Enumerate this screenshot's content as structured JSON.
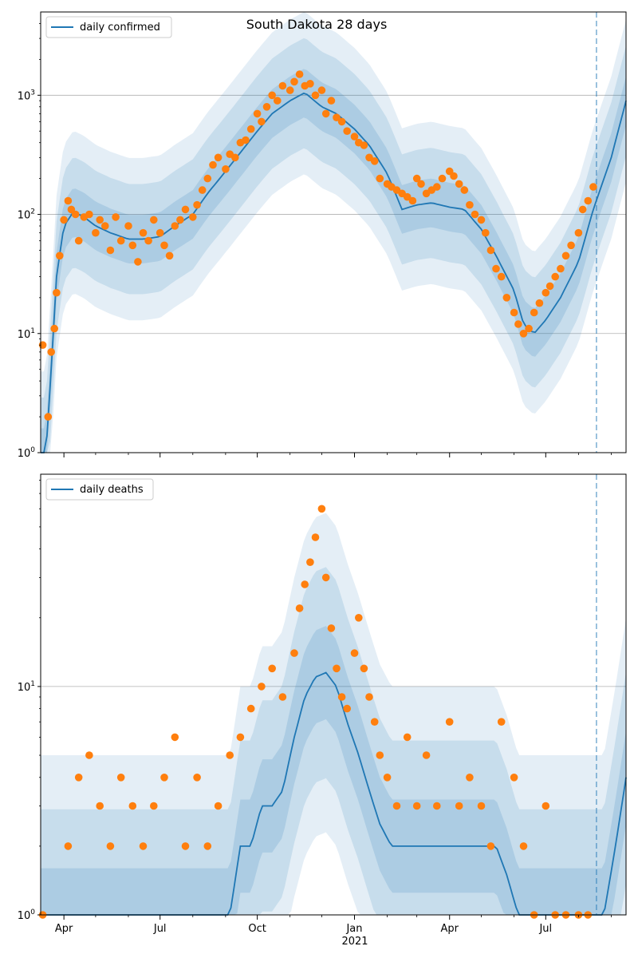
{
  "figure": {
    "title": "South Dakota 28 days",
    "year_label": "2021"
  },
  "colors": {
    "line": "#1f77b4",
    "points": "#ff7f0e",
    "band": "#1f77b4",
    "grid": "#b0b0b0"
  },
  "chart_data": [
    {
      "type": "line",
      "name": "cases",
      "title": "South Dakota 28 days",
      "yscale": "log",
      "ylim": [
        1,
        5000
      ],
      "xlim": [
        "2020-03-10",
        "2021-09-15"
      ],
      "grid": true,
      "legend": {
        "position": "top-left",
        "entries": [
          "daily confirmed"
        ]
      },
      "forecast_start": "2021-08-18",
      "yticks": [
        {
          "value": 1,
          "label": "10^0"
        },
        {
          "value": 10,
          "label": "10^1"
        },
        {
          "value": 100,
          "label": "10^2"
        },
        {
          "value": 1000,
          "label": "10^3"
        }
      ],
      "xticks": [
        "Apr",
        "Jul",
        "Oct",
        "Jan",
        "Apr",
        "Jul"
      ],
      "series": [
        {
          "name": "daily confirmed",
          "kind": "model-median",
          "x": [
            "2020-03-15",
            "2020-03-20",
            "2020-03-25",
            "2020-04-01",
            "2020-04-10",
            "2020-04-20",
            "2020-05-01",
            "2020-05-15",
            "2020-06-01",
            "2020-06-15",
            "2020-07-01",
            "2020-07-15",
            "2020-08-01",
            "2020-08-15",
            "2020-09-01",
            "2020-09-15",
            "2020-10-01",
            "2020-10-15",
            "2020-11-01",
            "2020-11-15",
            "2020-12-01",
            "2020-12-15",
            "2021-01-01",
            "2021-01-15",
            "2021-02-01",
            "2021-02-15",
            "2021-03-01",
            "2021-03-15",
            "2021-04-01",
            "2021-04-15",
            "2021-05-01",
            "2021-05-15",
            "2021-06-01",
            "2021-06-10",
            "2021-06-20",
            "2021-07-01",
            "2021-07-15",
            "2021-08-01",
            "2021-08-15",
            "2021-09-01",
            "2021-09-15"
          ],
          "y": [
            1,
            5,
            30,
            80,
            105,
            95,
            80,
            70,
            62,
            62,
            65,
            80,
            100,
            150,
            230,
            330,
            500,
            700,
            900,
            1050,
            800,
            700,
            520,
            380,
            220,
            110,
            120,
            125,
            115,
            110,
            75,
            45,
            23,
            12,
            10,
            13,
            20,
            40,
            110,
            300,
            900
          ]
        },
        {
          "name": "observed",
          "kind": "points",
          "x": [
            "2020-03-12",
            "2020-03-17",
            "2020-03-20",
            "2020-03-23",
            "2020-03-25",
            "2020-03-28",
            "2020-04-01",
            "2020-04-05",
            "2020-04-08",
            "2020-04-12",
            "2020-04-15",
            "2020-04-20",
            "2020-04-25",
            "2020-05-01",
            "2020-05-05",
            "2020-05-10",
            "2020-05-15",
            "2020-05-20",
            "2020-05-25",
            "2020-06-01",
            "2020-06-05",
            "2020-06-10",
            "2020-06-15",
            "2020-06-20",
            "2020-06-25",
            "2020-07-01",
            "2020-07-05",
            "2020-07-10",
            "2020-07-15",
            "2020-07-20",
            "2020-07-25",
            "2020-08-01",
            "2020-08-05",
            "2020-08-10",
            "2020-08-15",
            "2020-08-20",
            "2020-08-25",
            "2020-09-01",
            "2020-09-05",
            "2020-09-10",
            "2020-09-15",
            "2020-09-20",
            "2020-09-25",
            "2020-10-01",
            "2020-10-05",
            "2020-10-10",
            "2020-10-15",
            "2020-10-20",
            "2020-10-25",
            "2020-11-01",
            "2020-11-05",
            "2020-11-10",
            "2020-11-15",
            "2020-11-20",
            "2020-11-25",
            "2020-12-01",
            "2020-12-05",
            "2020-12-10",
            "2020-12-15",
            "2020-12-20",
            "2020-12-25",
            "2021-01-01",
            "2021-01-05",
            "2021-01-10",
            "2021-01-15",
            "2021-01-20",
            "2021-01-25",
            "2021-02-01",
            "2021-02-05",
            "2021-02-10",
            "2021-02-15",
            "2021-02-20",
            "2021-02-25",
            "2021-03-01",
            "2021-03-05",
            "2021-03-10",
            "2021-03-15",
            "2021-03-20",
            "2021-03-25",
            "2021-04-01",
            "2021-04-05",
            "2021-04-10",
            "2021-04-15",
            "2021-04-20",
            "2021-04-25",
            "2021-05-01",
            "2021-05-05",
            "2021-05-10",
            "2021-05-15",
            "2021-05-20",
            "2021-05-25",
            "2021-06-01",
            "2021-06-05",
            "2021-06-10",
            "2021-06-15",
            "2021-06-20",
            "2021-06-25",
            "2021-07-01",
            "2021-07-05",
            "2021-07-10",
            "2021-07-15",
            "2021-07-20",
            "2021-07-25",
            "2021-08-01",
            "2021-08-05",
            "2021-08-10",
            "2021-08-15"
          ],
          "y": [
            8,
            2,
            7,
            11,
            22,
            45,
            90,
            130,
            110,
            100,
            60,
            95,
            100,
            70,
            90,
            80,
            50,
            95,
            60,
            80,
            55,
            40,
            70,
            60,
            90,
            70,
            55,
            45,
            80,
            90,
            110,
            95,
            120,
            160,
            200,
            260,
            300,
            240,
            320,
            300,
            400,
            420,
            520,
            700,
            600,
            800,
            1000,
            900,
            1200,
            1100,
            1300,
            1500,
            1200,
            1250,
            1000,
            1100,
            700,
            900,
            650,
            600,
            500,
            450,
            400,
            380,
            300,
            280,
            200,
            180,
            170,
            160,
            150,
            140,
            130,
            200,
            180,
            150,
            160,
            170,
            200,
            230,
            210,
            180,
            160,
            120,
            100,
            90,
            70,
            50,
            35,
            30,
            20,
            15,
            12,
            10,
            11,
            15,
            18,
            22,
            25,
            30,
            35,
            45,
            55,
            70,
            110,
            130,
            170
          ]
        }
      ]
    },
    {
      "type": "line",
      "name": "deaths",
      "yscale": "log",
      "ylim": [
        1,
        85
      ],
      "xlim": [
        "2020-03-10",
        "2021-09-15"
      ],
      "grid": true,
      "legend": {
        "position": "top-left",
        "entries": [
          "daily deaths"
        ]
      },
      "forecast_start": "2021-08-18",
      "yticks": [
        {
          "value": 1,
          "label": "10^0"
        },
        {
          "value": 10,
          "label": "10^1"
        }
      ],
      "xticks": [
        "Apr",
        "Jul",
        "Oct",
        "Jan",
        "Apr",
        "Jul"
      ],
      "series": [
        {
          "name": "daily deaths",
          "kind": "model-median",
          "x": [
            "2020-03-10",
            "2020-09-05",
            "2020-09-15",
            "2020-09-25",
            "2020-10-05",
            "2020-10-15",
            "2020-10-25",
            "2020-11-05",
            "2020-11-15",
            "2020-11-25",
            "2020-12-05",
            "2020-12-15",
            "2020-12-25",
            "2021-01-05",
            "2021-01-15",
            "2021-01-25",
            "2021-02-05",
            "2021-02-15",
            "2021-02-25",
            "2021-03-05",
            "2021-03-15",
            "2021-03-25",
            "2021-04-05",
            "2021-04-15",
            "2021-04-25",
            "2021-05-05",
            "2021-05-15",
            "2021-05-25",
            "2021-06-05",
            "2021-06-15",
            "2021-06-25",
            "2021-07-05",
            "2021-07-15",
            "2021-07-25",
            "2021-08-05",
            "2021-08-15",
            "2021-08-25",
            "2021-09-05",
            "2021-09-15"
          ],
          "y": [
            1,
            1,
            2,
            2,
            3,
            3,
            3.5,
            6,
            9,
            11,
            11.5,
            10,
            7,
            5,
            3.5,
            2.5,
            2,
            2,
            2,
            2,
            2,
            2,
            2,
            2,
            2,
            2,
            2,
            1.5,
            1,
            1,
            1,
            1,
            1,
            1,
            1,
            1,
            1,
            2,
            4
          ]
        },
        {
          "name": "observed",
          "kind": "points",
          "x": [
            "2020-03-12",
            "2020-04-05",
            "2020-04-15",
            "2020-04-25",
            "2020-05-05",
            "2020-05-15",
            "2020-05-25",
            "2020-06-05",
            "2020-06-15",
            "2020-06-25",
            "2020-07-05",
            "2020-07-15",
            "2020-07-25",
            "2020-08-05",
            "2020-08-15",
            "2020-08-25",
            "2020-09-05",
            "2020-09-15",
            "2020-09-25",
            "2020-10-05",
            "2020-10-15",
            "2020-10-25",
            "2020-11-05",
            "2020-11-10",
            "2020-11-15",
            "2020-11-20",
            "2020-11-25",
            "2020-12-01",
            "2020-12-05",
            "2020-12-10",
            "2020-12-15",
            "2020-12-20",
            "2020-12-25",
            "2021-01-01",
            "2021-01-05",
            "2021-01-10",
            "2021-01-15",
            "2021-01-20",
            "2021-01-25",
            "2021-02-01",
            "2021-02-10",
            "2021-02-20",
            "2021-03-01",
            "2021-03-10",
            "2021-03-20",
            "2021-04-01",
            "2021-04-10",
            "2021-04-20",
            "2021-05-01",
            "2021-05-10",
            "2021-05-20",
            "2021-06-01",
            "2021-06-10",
            "2021-06-20",
            "2021-07-01",
            "2021-07-10",
            "2021-07-20",
            "2021-08-01",
            "2021-08-10"
          ],
          "y": [
            1,
            2,
            4,
            5,
            3,
            2,
            4,
            3,
            2,
            3,
            4,
            6,
            2,
            4,
            2,
            3,
            5,
            6,
            8,
            10,
            12,
            9,
            14,
            22,
            28,
            35,
            45,
            60,
            30,
            18,
            12,
            9,
            8,
            14,
            20,
            12,
            9,
            7,
            5,
            4,
            3,
            6,
            3,
            5,
            3,
            7,
            3,
            4,
            3,
            2,
            7,
            4,
            2,
            1,
            3,
            1,
            1,
            1,
            1
          ]
        }
      ]
    }
  ]
}
